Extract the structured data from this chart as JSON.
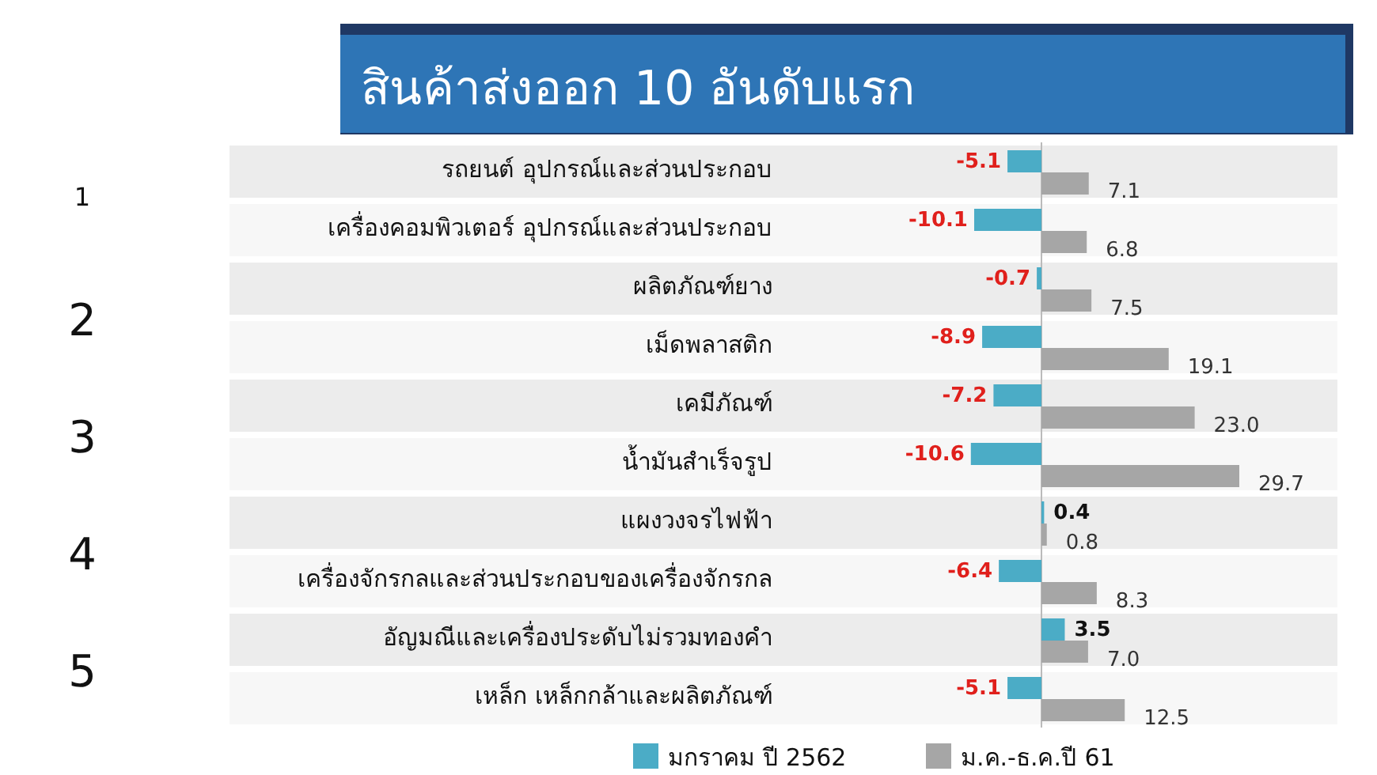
{
  "chart_data": {
    "type": "bar",
    "orientation": "horizontal",
    "title": "สินค้าส่งออก 10 อันดับแรก",
    "categories": [
      "รถยนต์ อุปกรณ์และส่วนประกอบ",
      "เครื่องคอมพิวเตอร์ อุปกรณ์และส่วนประกอบ",
      "ผลิตภัณฑ์ยาง",
      "เม็ดพลาสติก",
      "เคมีภัณฑ์",
      "น้ำมันสำเร็จรูป",
      "แผงวงจรไฟฟ้า",
      "เครื่องจักรกลและส่วนประกอบของเครื่องจักรกล",
      "อัญมณีและเครื่องประดับไม่รวมทองคำ",
      "เหล็ก เหล็กกล้าและผลิตภัณฑ์"
    ],
    "series": [
      {
        "name": "มกราคม ปี 2562",
        "color": "#4bacc6",
        "values": [
          -5.1,
          -10.1,
          -0.7,
          -8.9,
          -7.2,
          -10.6,
          0.4,
          -6.4,
          3.5,
          -5.1
        ]
      },
      {
        "name": "ม.ค.-ธ.ค.ปี 61",
        "color": "#a6a6a6",
        "values": [
          7.1,
          6.8,
          7.5,
          19.1,
          23.0,
          29.7,
          0.8,
          8.3,
          7.0,
          12.5
        ],
        "value_labels": [
          "7.1",
          "6.8",
          "7.5",
          "19.1",
          "23.0",
          "29.7",
          "0.8",
          "8.3",
          "7.0",
          "12.5"
        ]
      }
    ],
    "data_labels": true,
    "legend": "bottom",
    "annotations": [
      "1",
      "2",
      "3",
      "4",
      "5"
    ]
  }
}
